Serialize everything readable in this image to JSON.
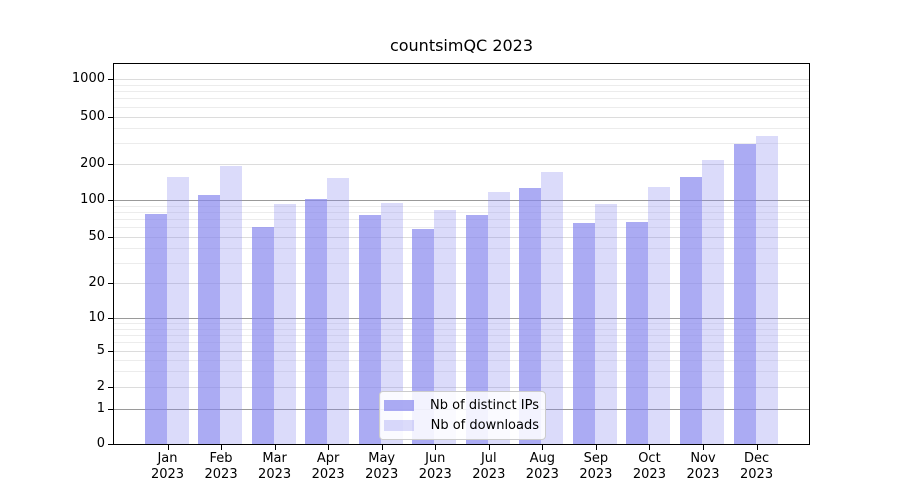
{
  "chart_data": {
    "type": "bar",
    "title": "countsimQC 2023",
    "categories": [
      "Jan 2023",
      "Feb 2023",
      "Mar 2023",
      "Apr 2023",
      "May 2023",
      "Jun 2023",
      "Jul 2023",
      "Aug 2023",
      "Sep 2023",
      "Oct 2023",
      "Nov 2023",
      "Dec 2023"
    ],
    "months": [
      "Jan",
      "Feb",
      "Mar",
      "Apr",
      "May",
      "Jun",
      "Jul",
      "Aug",
      "Sep",
      "Oct",
      "Nov",
      "Dec"
    ],
    "year": "2023",
    "series": [
      {
        "name": "Nb of distinct IPs",
        "color": "rgba(136,136,238,0.7)",
        "values": [
          77,
          110,
          60,
          101,
          75,
          58,
          75,
          126,
          65,
          66,
          155,
          295
        ]
      },
      {
        "name": "Nb of downloads",
        "color": "rgba(136,136,238,0.3)",
        "values": [
          155,
          193,
          93,
          154,
          95,
          83,
          117,
          171,
          92,
          128,
          215,
          345
        ]
      }
    ],
    "yscale": "symlog",
    "ylim": [
      0,
      1400
    ],
    "yticks": [
      0,
      1,
      2,
      5,
      10,
      20,
      50,
      100,
      200,
      500,
      1000
    ],
    "ytick_labels": [
      "0",
      "1",
      "2",
      "5",
      "10",
      "20",
      "50",
      "100",
      "200",
      "500",
      "1000"
    ],
    "grid": true,
    "legend_position": "lower-center",
    "accent_color": "#8888ee",
    "grid_major_color": "#9a9a9a",
    "grid_minor_color": "#ececec"
  }
}
